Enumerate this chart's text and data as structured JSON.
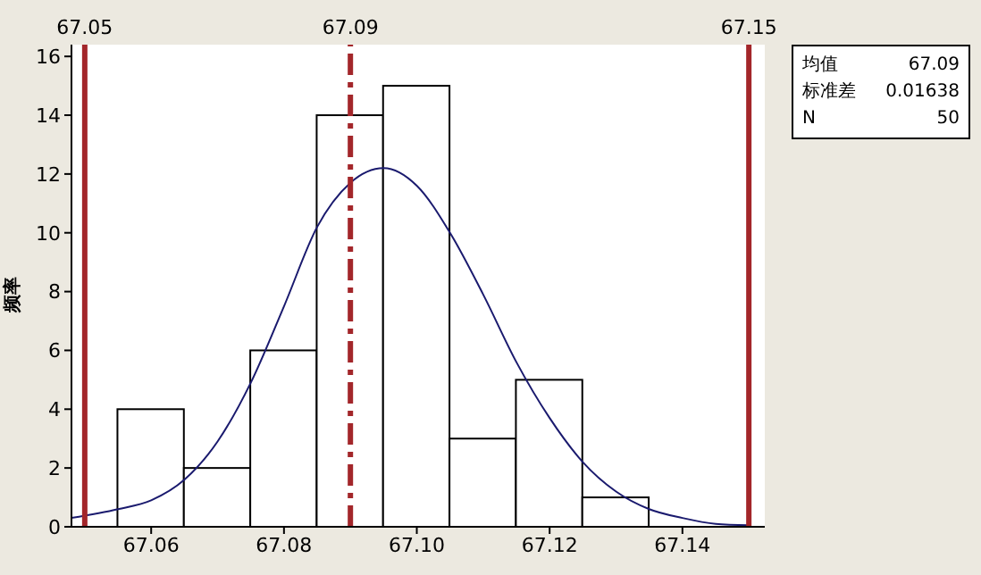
{
  "chart_data": {
    "type": "histogram",
    "ylabel": "频率",
    "bins": [
      67.055,
      67.065,
      67.075,
      67.085,
      67.095,
      67.105,
      67.115,
      67.125,
      67.135
    ],
    "values": [
      4,
      2,
      6,
      14,
      15,
      3,
      5,
      1
    ],
    "color": "#ffffff",
    "series": [
      {
        "type": "line",
        "color": "#1a1a6e",
        "x": [
          67.048,
          67.055,
          67.06,
          67.065,
          67.07,
          67.075,
          67.08,
          67.085,
          67.09,
          67.095,
          67.1,
          67.105,
          67.11,
          67.115,
          67.12,
          67.125,
          67.13,
          67.135,
          67.14,
          67.145,
          67.15
        ],
        "values": [
          0.3,
          0.6,
          0.9,
          1.6,
          2.9,
          4.9,
          7.5,
          10.2,
          11.7,
          12.2,
          11.6,
          10.0,
          7.9,
          5.6,
          3.7,
          2.2,
          1.2,
          0.6,
          0.3,
          0.1,
          0.05
        ]
      }
    ],
    "xlim": [
      67.048,
      67.1524
    ],
    "xticks": [
      67.06,
      67.08,
      {
        "value": 67.1,
        "label": "67.10"
      },
      67.12,
      67.14
    ],
    "ylim": [
      0,
      16.4
    ],
    "yticks": [
      0,
      2,
      4,
      6,
      8,
      10,
      12,
      14,
      16
    ],
    "grid": false,
    "ref_lines": [
      {
        "axis": "x",
        "value": 67.05,
        "label": "67.05",
        "color": "#a3262a",
        "line_style": "solid"
      },
      {
        "axis": "x",
        "value": 67.09,
        "label": "67.09",
        "color": "#a3262a",
        "line_style": "dashed"
      },
      {
        "axis": "x",
        "value": 67.15,
        "label": "67.15",
        "color": "#a3262a",
        "line_style": "solid"
      }
    ],
    "annotations": [
      "均值 67.09",
      "标准差 0.01638",
      "N 50"
    ]
  }
}
